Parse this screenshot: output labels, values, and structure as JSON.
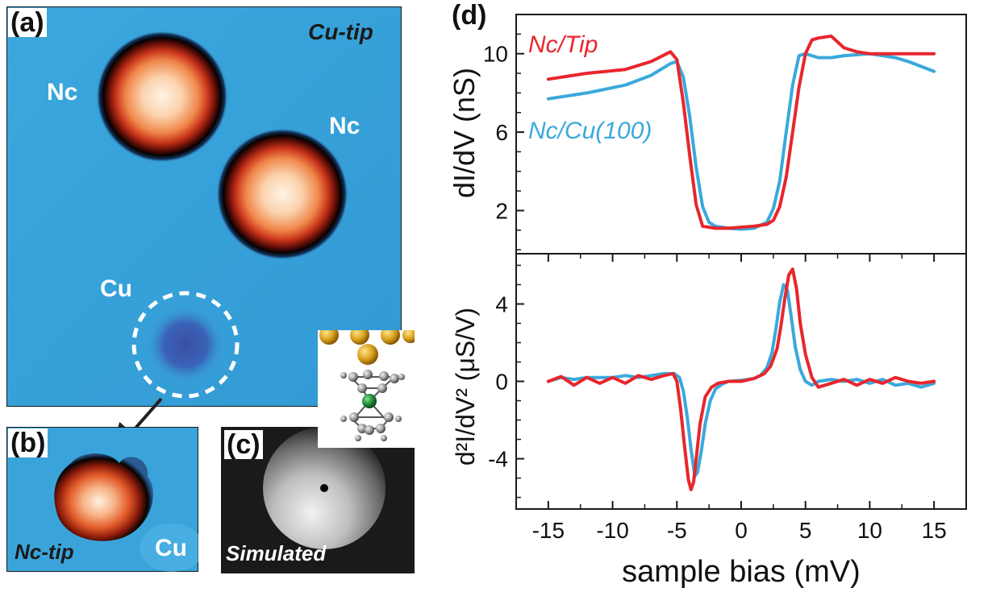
{
  "panel_a": {
    "label": "(a)",
    "tip_label": "Cu-tip",
    "nc1_label": "Nc",
    "nc2_label": "Nc",
    "cu_label": "Cu"
  },
  "panel_b": {
    "label": "(b)",
    "tip_label": "Nc-tip",
    "cu_label": "Cu"
  },
  "panel_c": {
    "label": "(c)",
    "caption": "Simulated"
  },
  "chart_data": [
    {
      "type": "line",
      "panel_label": "(d)",
      "ylabel": "dI/dV (nS)",
      "xlim": [
        -17.5,
        17.5
      ],
      "ylim": [
        -0.2,
        12
      ],
      "yticks": [
        2,
        6,
        10
      ],
      "series": [
        {
          "name": "Nc/Tip",
          "color": "#e8262d",
          "x": [
            -15,
            -12,
            -9,
            -7,
            -5.5,
            -5,
            -4.5,
            -4,
            -3.5,
            -3,
            -2.5,
            -2,
            -1,
            0,
            1,
            2,
            2.5,
            3,
            3.5,
            4,
            4.5,
            5,
            5.5,
            6,
            7,
            8,
            9,
            10,
            12,
            15
          ],
          "y": [
            8.7,
            9.0,
            9.2,
            9.6,
            10.1,
            9.7,
            7.5,
            4.8,
            2.3,
            1.2,
            1.15,
            1.1,
            1.1,
            1.15,
            1.2,
            1.3,
            1.5,
            2.2,
            3.7,
            6.0,
            8.3,
            10.0,
            10.7,
            10.8,
            10.9,
            10.3,
            10.1,
            10.0,
            10.0,
            10.0
          ]
        },
        {
          "name": "Nc/Cu(100)",
          "color": "#3aa9dc",
          "x": [
            -15,
            -12,
            -9,
            -7,
            -5.5,
            -5,
            -4.5,
            -4,
            -3.5,
            -3,
            -2.5,
            -2,
            -1,
            0,
            1,
            2,
            2.5,
            3,
            3.5,
            4,
            4.5,
            5,
            6,
            7,
            8,
            10,
            12,
            13,
            15
          ],
          "y": [
            7.7,
            8.0,
            8.4,
            8.9,
            9.5,
            9.6,
            8.8,
            6.8,
            4.2,
            2.2,
            1.4,
            1.2,
            1.1,
            1.05,
            1.1,
            1.4,
            2.1,
            3.5,
            6.0,
            8.4,
            9.9,
            10.0,
            9.8,
            9.8,
            9.9,
            10.0,
            9.8,
            9.6,
            9.1
          ]
        }
      ]
    },
    {
      "type": "line",
      "xlabel": "sample bias (mV)",
      "ylabel": "d²I/dV² (μS/V)",
      "xlim": [
        -17.5,
        17.5
      ],
      "ylim": [
        -6.6,
        6.6
      ],
      "xticks": [
        -15,
        -10,
        -5,
        0,
        5,
        10,
        15
      ],
      "xtick_labels": [
        "-15",
        "-10",
        "-5",
        "0",
        "5",
        "10",
        "15"
      ],
      "yticks": [
        -4,
        0,
        4
      ],
      "ytick_labels": [
        "-4",
        "0",
        "4"
      ],
      "series": [
        {
          "name": "Nc/Tip",
          "color": "#e8262d",
          "x": [
            -15,
            -14,
            -13,
            -12,
            -11,
            -10,
            -9,
            -8,
            -7,
            -6,
            -5.3,
            -5,
            -4.7,
            -4.4,
            -4.1,
            -3.9,
            -3.7,
            -3.5,
            -3.2,
            -2.8,
            -2.3,
            -1.8,
            -1,
            0,
            1,
            1.8,
            2.3,
            2.8,
            3.1,
            3.4,
            3.7,
            4.0,
            4.3,
            4.6,
            5,
            5.5,
            6,
            7,
            8,
            9,
            10,
            11,
            12,
            13,
            14,
            15
          ],
          "y": [
            0.0,
            0.25,
            -0.2,
            0.2,
            -0.1,
            0.2,
            -0.1,
            0.3,
            0.1,
            0.3,
            0.4,
            0.0,
            -1.5,
            -3.4,
            -5.1,
            -5.6,
            -5.2,
            -4.0,
            -2.2,
            -0.8,
            -0.3,
            -0.1,
            0.0,
            0.0,
            0.15,
            0.4,
            0.8,
            1.7,
            2.9,
            4.3,
            5.5,
            5.8,
            4.8,
            3.0,
            1.4,
            0.2,
            -0.3,
            -0.1,
            0.1,
            -0.2,
            0.1,
            -0.1,
            0.2,
            0.0,
            -0.1,
            0.0
          ]
        },
        {
          "name": "Nc/Cu(100)",
          "color": "#3aa9dc",
          "x": [
            -15,
            -14,
            -13,
            -12,
            -11,
            -10,
            -9,
            -8,
            -7,
            -6,
            -5.2,
            -4.8,
            -4.5,
            -4.2,
            -3.9,
            -3.6,
            -3.4,
            -3.1,
            -2.8,
            -2.4,
            -2.0,
            -1.5,
            -1,
            0,
            1,
            1.5,
            2.0,
            2.4,
            2.7,
            3.0,
            3.3,
            3.6,
            3.9,
            4.2,
            4.6,
            5.0,
            5.5,
            6,
            7,
            8,
            9,
            10,
            11,
            12,
            13,
            14,
            15
          ],
          "y": [
            0.0,
            0.2,
            0.1,
            0.2,
            0.2,
            0.2,
            0.3,
            0.2,
            0.3,
            0.4,
            0.4,
            0.2,
            -0.5,
            -1.8,
            -3.5,
            -4.9,
            -4.7,
            -3.6,
            -2.2,
            -1.0,
            -0.4,
            -0.15,
            0.0,
            0.05,
            0.15,
            0.3,
            0.7,
            1.5,
            2.7,
            4.1,
            5.0,
            4.7,
            3.3,
            1.8,
            0.6,
            0.0,
            -0.2,
            0.0,
            0.1,
            0.0,
            0.1,
            -0.1,
            0.1,
            -0.2,
            -0.1,
            -0.3,
            -0.1
          ]
        }
      ]
    }
  ]
}
